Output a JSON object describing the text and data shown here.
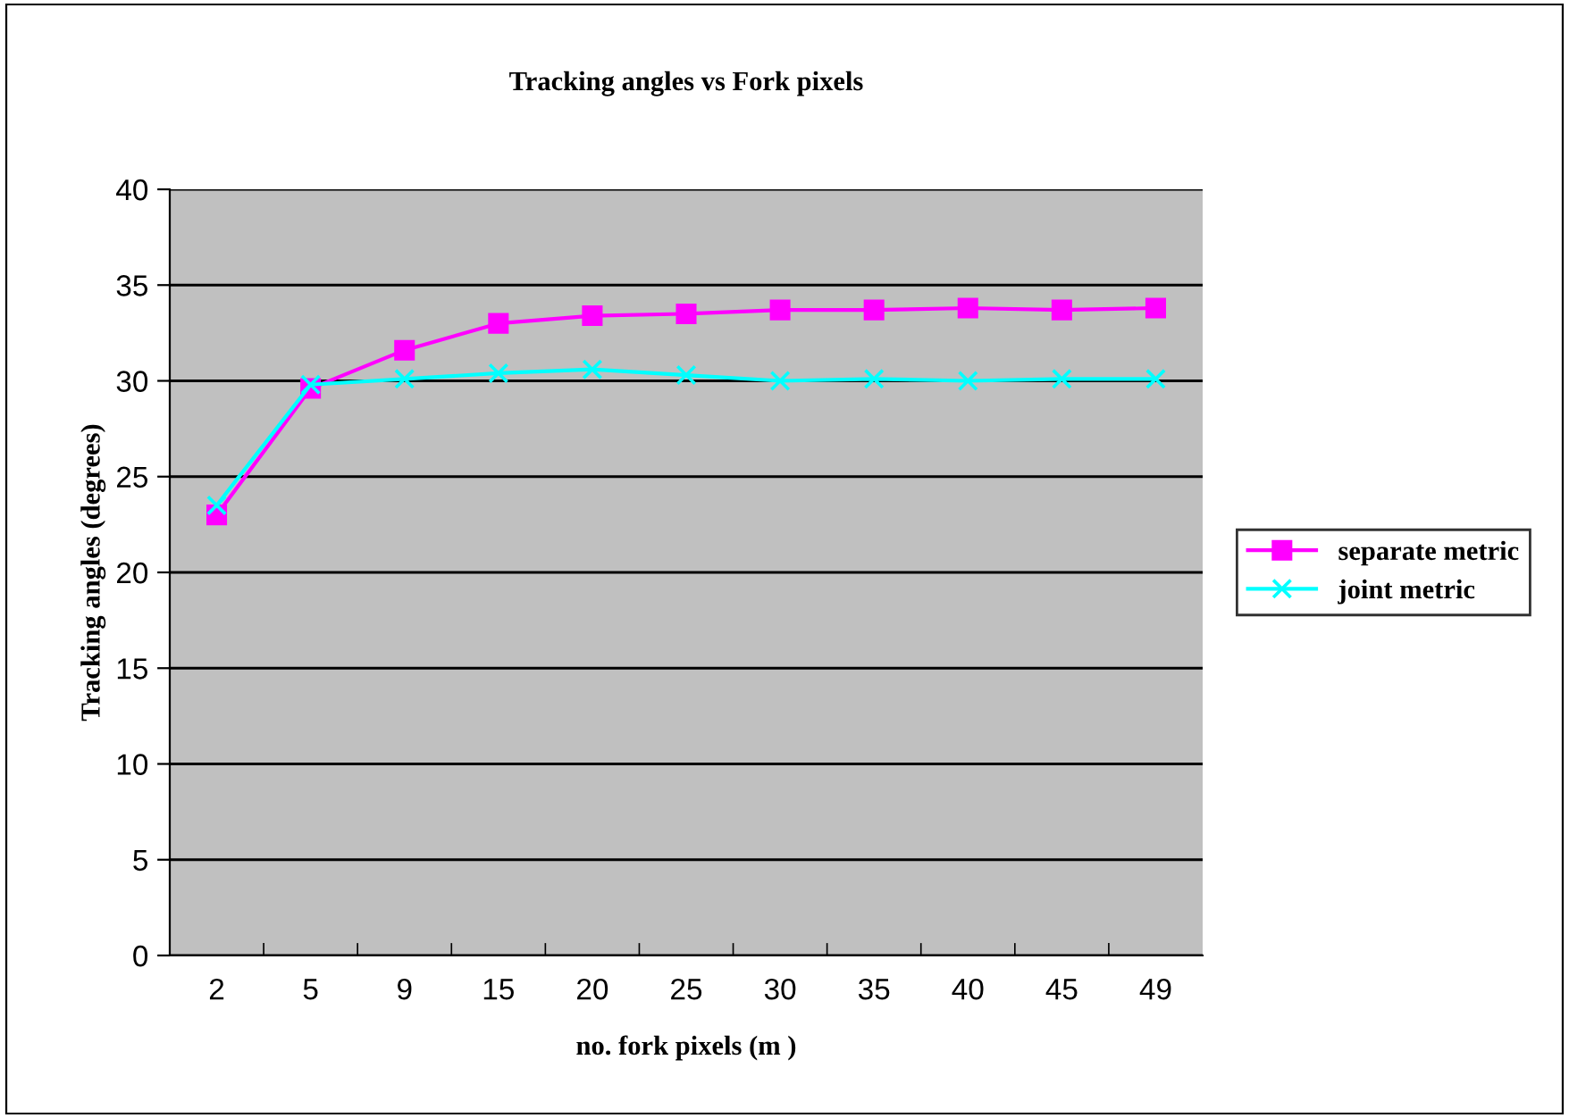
{
  "chart_data": {
    "type": "line",
    "title": "Tracking angles vs Fork pixels",
    "xlabel": "no. fork pixels (m )",
    "ylabel": "Tracking angles (degrees)",
    "categories": [
      "2",
      "5",
      "9",
      "15",
      "20",
      "25",
      "30",
      "35",
      "40",
      "45",
      "49"
    ],
    "series": [
      {
        "name": "separate metric",
        "color": "#ff00ff",
        "marker": "square",
        "values": [
          23.0,
          29.6,
          31.6,
          33.0,
          33.4,
          33.5,
          33.7,
          33.7,
          33.8,
          33.7,
          33.8
        ]
      },
      {
        "name": "joint metric",
        "color": "#00ffff",
        "marker": "cross",
        "values": [
          23.5,
          29.8,
          30.1,
          30.4,
          30.6,
          30.3,
          30.0,
          30.1,
          30.0,
          30.1,
          30.1
        ]
      }
    ],
    "ylim": [
      0,
      40
    ],
    "yticks": [
      0,
      5,
      10,
      15,
      20,
      25,
      30,
      35,
      40
    ],
    "grid": "y",
    "legend": "right"
  }
}
